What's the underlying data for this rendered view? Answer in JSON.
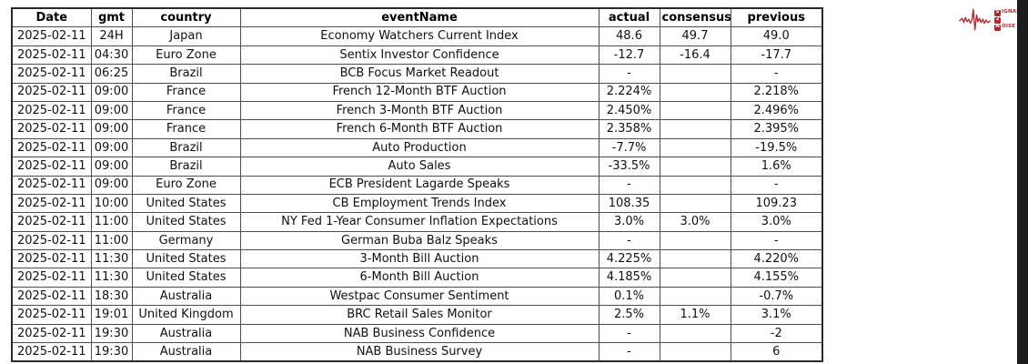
{
  "chart_data": {
    "type": "table",
    "title": "",
    "columns": [
      "Date",
      "gmt",
      "country",
      "eventName",
      "actual",
      "consensus",
      "previous"
    ],
    "rows": [
      [
        "2025-02-11",
        "24H",
        "Japan",
        "Economy Watchers Current Index",
        "48.6",
        "49.7",
        "49.0"
      ],
      [
        "2025-02-11",
        "04:30",
        "Euro Zone",
        "Sentix Investor Confidence",
        "-12.7",
        "-16.4",
        "-17.7"
      ],
      [
        "2025-02-11",
        "06:25",
        "Brazil",
        "BCB Focus Market Readout",
        "-",
        "",
        "-"
      ],
      [
        "2025-02-11",
        "09:00",
        "France",
        "French 12-Month BTF Auction",
        "2.224%",
        "",
        "2.218%"
      ],
      [
        "2025-02-11",
        "09:00",
        "France",
        "French 3-Month BTF Auction",
        "2.450%",
        "",
        "2.496%"
      ],
      [
        "2025-02-11",
        "09:00",
        "France",
        "French 6-Month BTF Auction",
        "2.358%",
        "",
        "2.395%"
      ],
      [
        "2025-02-11",
        "09:00",
        "Brazil",
        "Auto Production",
        "-7.7%",
        "",
        "-19.5%"
      ],
      [
        "2025-02-11",
        "09:00",
        "Brazil",
        "Auto Sales",
        "-33.5%",
        "",
        "1.6%"
      ],
      [
        "2025-02-11",
        "09:00",
        "Euro Zone",
        "ECB President Lagarde Speaks",
        "-",
        "",
        "-"
      ],
      [
        "2025-02-11",
        "10:00",
        "United States",
        "CB Employment Trends Index",
        "108.35",
        "",
        "109.23"
      ],
      [
        "2025-02-11",
        "11:00",
        "United States",
        "NY Fed 1-Year Consumer Inflation Expectations",
        "3.0%",
        "3.0%",
        "3.0%"
      ],
      [
        "2025-02-11",
        "11:00",
        "Germany",
        "German Buba Balz Speaks",
        "-",
        "",
        "-"
      ],
      [
        "2025-02-11",
        "11:30",
        "United States",
        "3-Month Bill Auction",
        "4.225%",
        "",
        "4.220%"
      ],
      [
        "2025-02-11",
        "11:30",
        "United States",
        "6-Month Bill Auction",
        "4.185%",
        "",
        "4.155%"
      ],
      [
        "2025-02-11",
        "18:30",
        "Australia",
        "Westpac Consumer Sentiment",
        "0.1%",
        "",
        "-0.7%"
      ],
      [
        "2025-02-11",
        "19:01",
        "United Kingdom",
        "BRC Retail Sales Monitor",
        "2.5%",
        "1.1%",
        "3.1%"
      ],
      [
        "2025-02-11",
        "19:30",
        "Australia",
        "NAB Business Confidence",
        "-",
        "",
        "-2"
      ],
      [
        "2025-02-11",
        "19:30",
        "Australia",
        "NAB Business Survey",
        "-",
        "",
        "6"
      ]
    ]
  },
  "logo": {
    "l1_boxed": "S",
    "l1_rest": "IGNAL",
    "l2_boxed": "2",
    "l3_boxed": "N",
    "l3_rest": "OISE",
    "accent_color": "#b3282d"
  },
  "colors": {
    "background": "#ffffff",
    "table_border_outer": "#2a2a2a",
    "table_border_inner": "#4f4f4f",
    "side_strip": "#1b1b20",
    "text": "#111111"
  }
}
